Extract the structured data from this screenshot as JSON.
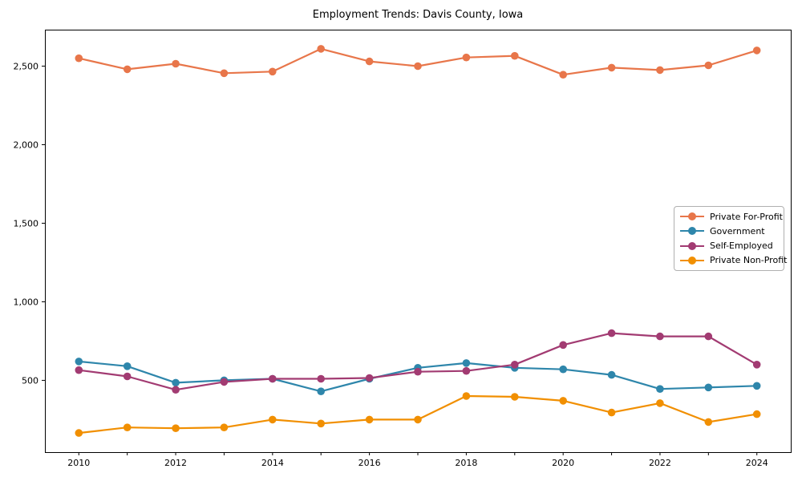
{
  "chart_data": {
    "type": "line",
    "title": "Employment Trends: Davis County, Iowa",
    "xlabel": "",
    "ylabel": "",
    "grid": false,
    "legend_position": "right",
    "xlim": [
      2009.3,
      2024.7
    ],
    "ylim": [
      43,
      2732
    ],
    "x": [
      2010,
      2011,
      2012,
      2013,
      2014,
      2015,
      2016,
      2017,
      2018,
      2019,
      2020,
      2021,
      2022,
      2023,
      2024
    ],
    "x_axis": {
      "labeled_ticks": [
        {
          "value": 2010,
          "label": "2010"
        },
        {
          "value": 2012,
          "label": "2012"
        },
        {
          "value": 2014,
          "label": "2014"
        },
        {
          "value": 2016,
          "label": "2016"
        },
        {
          "value": 2018,
          "label": "2018"
        },
        {
          "value": 2020,
          "label": "2020"
        },
        {
          "value": 2022,
          "label": "2022"
        },
        {
          "value": 2024,
          "label": "2024"
        }
      ]
    },
    "y_axis": {
      "ticks": [
        {
          "value": 500,
          "label": "500"
        },
        {
          "value": 1000,
          "label": "1,000"
        },
        {
          "value": 1500,
          "label": "1,500"
        },
        {
          "value": 2000,
          "label": "2,000"
        },
        {
          "value": 2500,
          "label": "2,500"
        }
      ]
    },
    "series": [
      {
        "name": "Private For-Profit",
        "color": "#E8764A",
        "values": [
          2550,
          2480,
          2515,
          2455,
          2465,
          2610,
          2530,
          2500,
          2555,
          2565,
          2445,
          2490,
          2475,
          2505,
          2600
        ]
      },
      {
        "name": "Government",
        "color": "#2E86AB",
        "values": [
          620,
          590,
          485,
          500,
          510,
          430,
          510,
          580,
          610,
          580,
          570,
          535,
          445,
          455,
          465
        ]
      },
      {
        "name": "Self-Employed",
        "color": "#A23B72",
        "values": [
          565,
          525,
          440,
          490,
          510,
          510,
          515,
          555,
          560,
          600,
          725,
          800,
          780,
          780,
          600
        ]
      },
      {
        "name": "Private Non-Profit",
        "color": "#F18F01",
        "values": [
          165,
          200,
          195,
          200,
          250,
          225,
          250,
          250,
          400,
          395,
          370,
          295,
          355,
          235,
          285
        ]
      }
    ]
  }
}
